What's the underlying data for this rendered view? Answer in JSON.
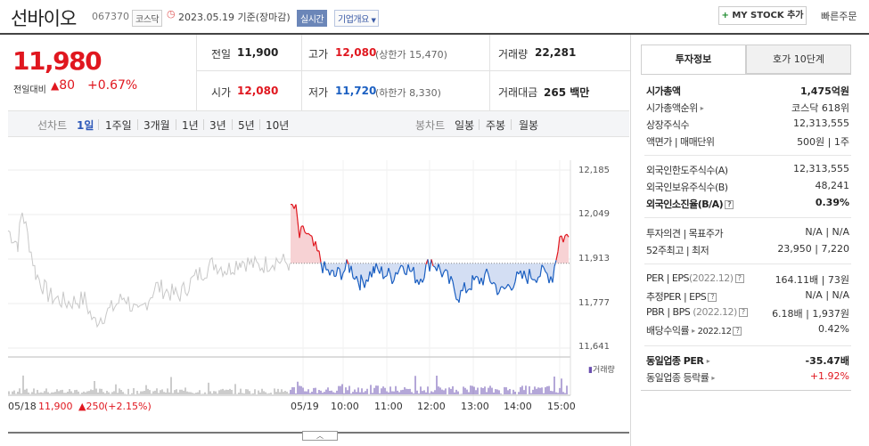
{
  "header": {
    "name": "선바이오",
    "code": "067370",
    "market": "코스닥",
    "date_basis": "2023.05.19  기준(장마감)",
    "realtime_label": "실시간",
    "company_overview": "기업개요",
    "mystock_plus": "+",
    "mystock": "MY STOCK 추가",
    "quick_order": "빠른주문"
  },
  "quote": {
    "price": "11,980",
    "change_label": "전일대비",
    "change_arrow": "▲",
    "change": "80",
    "change_pct": "+0.67%",
    "prev_close_label": "전일",
    "prev_close": "11,900",
    "high_label": "고가",
    "high": "12,080",
    "upper_limit": "(상한가 15,470)",
    "volume_label": "거래량",
    "volume": "22,281",
    "open_label": "시가",
    "open": "12,080",
    "low_label": "저가",
    "low": "11,720",
    "lower_limit": "(하한가 8,330)",
    "amount_label": "거래대금",
    "amount": "265 백만"
  },
  "toolbar": {
    "line_chart": "선차트",
    "periods": [
      "1일",
      "1주일",
      "3개월",
      "1년",
      "3년",
      "5년",
      "10년"
    ],
    "candle_chart": "봉차트",
    "candle_periods": [
      "일봉",
      "주봉",
      "월봉"
    ]
  },
  "chart_data": {
    "type": "line",
    "y_ticks": [
      "12,185",
      "12,049",
      "11,913",
      "11,777",
      "11,641"
    ],
    "ylim": [
      11641,
      12185
    ],
    "x_ticks": [
      "05/19",
      "10:00",
      "11:00",
      "12:00",
      "13:00",
      "14:00",
      "15:00"
    ],
    "reference_price": 11900,
    "volume_legend": "거래량",
    "prev_day": {
      "date": "05/18",
      "close": "11,900",
      "change": "▲250",
      "change_pct": "(+2.15%)"
    },
    "colors": {
      "up": "#e0171f",
      "down": "#1b5fc1",
      "prev": "#c8c8c8",
      "up_fill": "#f7d2d4",
      "down_fill": "#d3def3"
    }
  },
  "panel": {
    "tab_invest": "투자정보",
    "tab_orderbook": "호가 10단계",
    "market_cap_label": "시가총액",
    "market_cap": "1,475억원",
    "market_cap_rank_label": "시가총액순위",
    "market_cap_rank": "코스닥 618위",
    "listed_shares_label": "상장주식수",
    "listed_shares": "12,313,555",
    "par_value_label": "액면가 | 매매단위",
    "par_value": "500원 | 1주",
    "foreign_limit_label": "외국인한도주식수(A)",
    "foreign_limit": "12,313,555",
    "foreign_held_label": "외국인보유주식수(B)",
    "foreign_held": "48,241",
    "foreign_ratio_label": "외국인소진율(B/A)",
    "foreign_ratio": "0.39%",
    "opinion_label": "투자의견 | 목표주가",
    "opinion": "N/A | N/A",
    "week52_label": "52주최고 | 최저",
    "week52": "23,950 | 7,220",
    "per_label": "PER | EPS",
    "per_year": "(2022.12)",
    "per": "164.11배 | 73원",
    "est_per_label": "추정PER | EPS",
    "est_per": "N/A | N/A",
    "pbr_label": "PBR | BPS",
    "pbr_year": "(2022.12)",
    "pbr": "6.18배 | 1,937원",
    "dividend_label": "배당수익률",
    "dividend_year": "2022.12",
    "dividend": "0.42%",
    "industry_per_label": "동일업종 PER",
    "industry_per": "-35.47배",
    "industry_change_label": "동일업종 등락률",
    "industry_change": "+1.92%"
  }
}
